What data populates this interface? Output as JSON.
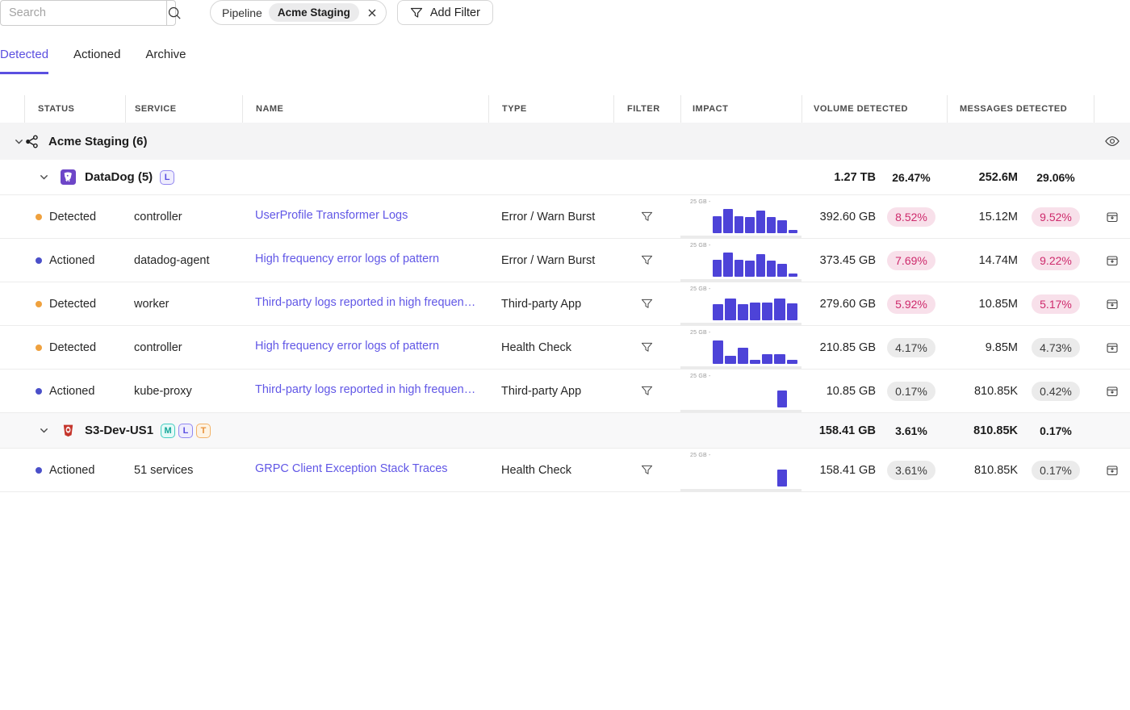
{
  "topbar": {
    "search_placeholder": "Search",
    "chip": {
      "field": "Pipeline",
      "value": "Acme Staging"
    },
    "add_filter": "Add Filter"
  },
  "tabs": {
    "detected": "Detected",
    "actioned": "Actioned",
    "archive": "Archive"
  },
  "columns": {
    "status": "STATUS",
    "service": "SERVICE",
    "name": "NAME",
    "type": "TYPE",
    "filter": "FILTER",
    "impact": "IMPACT",
    "volume": "VOLUME DETECTED",
    "messages": "MESSAGES DETECTED"
  },
  "colors": {
    "accent": "#5b4fe0",
    "link": "#6157e6",
    "bar": "#4d43d8",
    "badge_high_bg": "#f8e0ea",
    "badge_high_text": "#ce2a6c",
    "badge_low_bg": "#ebebeb",
    "badge_low_text": "#3c3c3c",
    "dot_detected": "#efa13e",
    "dot_actioned": "#4a4fc9",
    "group_row_bg": "#f4f4f5"
  },
  "chart_axis_label": "25 GB -",
  "groups": {
    "acme": {
      "title": "Acme Staging (6)"
    },
    "datadog": {
      "title": "DataDog (5)",
      "badges": {
        "l": "L"
      },
      "volume": "1.27 TB",
      "volume_pct": "26.47%",
      "volume_pct_class": "v-plain",
      "messages": "252.6M",
      "messages_pct": "29.06%",
      "messages_pct_class": "v-plain"
    },
    "s3": {
      "title": "S3-Dev-US1",
      "badges": {
        "m": "M",
        "l": "L",
        "t": "T"
      },
      "volume": "158.41 GB",
      "volume_pct": "3.61%",
      "volume_pct_class": "v-plain",
      "messages": "810.85K",
      "messages_pct": "0.17%",
      "messages_pct_class": "v-plain"
    }
  },
  "rows": [
    {
      "status": "Detected",
      "status_class": "v-detected",
      "service": "controller",
      "name": "UserProfile Transformer Logs",
      "type": "Error / Warn Burst",
      "bars": [
        0.62,
        0.88,
        0.62,
        0.6,
        0.82,
        0.6,
        0.46,
        0.12
      ],
      "volume": "392.60 GB",
      "volume_pct": "8.52%",
      "volume_pct_class": "v-high",
      "messages": "15.12M",
      "messages_pct": "9.52%",
      "messages_pct_class": "v-high"
    },
    {
      "status": "Actioned",
      "status_class": "v-actioned",
      "service": "datadog-agent",
      "name": "High frequency error logs of pattern",
      "type": "Error / Warn Burst",
      "bars": [
        0.62,
        0.88,
        0.62,
        0.6,
        0.82,
        0.6,
        0.46,
        0.12
      ],
      "volume": "373.45 GB",
      "volume_pct": "7.69%",
      "volume_pct_class": "v-high",
      "messages": "14.74M",
      "messages_pct": "9.22%",
      "messages_pct_class": "v-high"
    },
    {
      "status": "Detected",
      "status_class": "v-detected",
      "service": "worker",
      "name": "Third-party logs reported in high frequen…",
      "type": "Third-party App",
      "bars": [
        0.6,
        0.78,
        0.58,
        0.66,
        0.66,
        0.8,
        0.62
      ],
      "volume": "279.60 GB",
      "volume_pct": "5.92%",
      "volume_pct_class": "v-high",
      "messages": "10.85M",
      "messages_pct": "5.17%",
      "messages_pct_class": "v-high"
    },
    {
      "status": "Detected",
      "status_class": "v-detected",
      "service": "controller",
      "name": "High frequency error logs of pattern",
      "type": "Health Check",
      "bars": [
        0.85,
        0.28,
        0.58,
        0.16,
        0.34,
        0.34,
        0.16
      ],
      "volume": "210.85 GB",
      "volume_pct": "4.17%",
      "volume_pct_class": "v-low",
      "messages": "9.85M",
      "messages_pct": "4.73%",
      "messages_pct_class": "v-low"
    },
    {
      "status": "Actioned",
      "status_class": "v-actioned",
      "service": "kube-proxy",
      "name": "Third-party logs reported in high frequen…",
      "type": "Third-party App",
      "bars": [
        0,
        0,
        0,
        0,
        0,
        0,
        0.62,
        0
      ],
      "volume": "10.85 GB",
      "volume_pct": "0.17%",
      "volume_pct_class": "v-low",
      "messages": "810.85K",
      "messages_pct": "0.42%",
      "messages_pct_class": "v-low"
    },
    {
      "status": "Actioned",
      "status_class": "v-actioned",
      "service": "51 services",
      "name": "GRPC Client Exception Stack Traces",
      "type": "Health Check",
      "bars": [
        0,
        0,
        0,
        0,
        0,
        0,
        0.62,
        0
      ],
      "volume": "158.41 GB",
      "volume_pct": "3.61%",
      "volume_pct_class": "v-low",
      "messages": "810.85K",
      "messages_pct": "0.17%",
      "messages_pct_class": "v-low"
    }
  ]
}
